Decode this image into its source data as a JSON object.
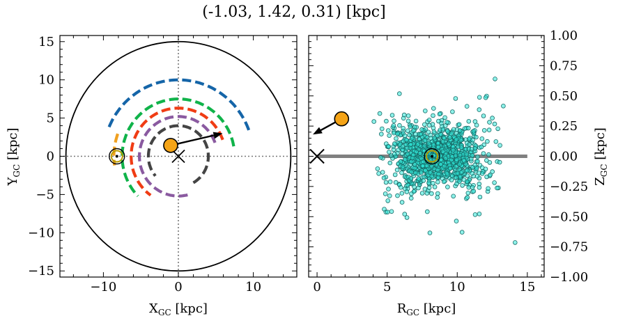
{
  "title": "(-1.03, 1.42, 0.31) [kpc]",
  "chart_data": [
    {
      "type": "scatter",
      "panel": "left",
      "xlabel_main": "X",
      "xlabel_sub": "GC",
      "xlabel_unit": " [kpc]",
      "ylabel_main": "Y",
      "ylabel_sub": "GC",
      "ylabel_unit": " [kpc]",
      "xlim": [
        -15.8,
        15.8
      ],
      "ylim": [
        -15.8,
        15.8
      ],
      "xticks": [
        -10,
        0,
        10
      ],
      "xtick_labels": [
        "−10",
        "0",
        "10"
      ],
      "yticks": [
        -15,
        -10,
        -5,
        0,
        5,
        10,
        15
      ],
      "ytick_labels": [
        "−15",
        "−10",
        "−5",
        "0",
        "5",
        "10",
        "15"
      ],
      "grid": false,
      "galaxy_circle_radius": 15,
      "galactic_center": [
        0,
        0
      ],
      "sun_position": [
        -8.2,
        0
      ],
      "object_position": [
        -1.03,
        1.42
      ],
      "velocity_arrow_end": [
        5.9,
        3.0
      ],
      "spiral_arms": [
        {
          "color": "#1565a8",
          "radius": 10.0,
          "theta_deg": [
            20,
            160
          ]
        },
        {
          "color": "#10b34a",
          "radius": 7.5,
          "theta_deg": [
            10,
            225
          ]
        },
        {
          "color": "#f0a020",
          "radius": 8.6,
          "theta_deg": [
            160,
            188
          ]
        },
        {
          "color": "#f03c14",
          "radius": 6.3,
          "theta_deg": [
            20,
            235
          ]
        },
        {
          "color": "#8a5aa0",
          "radius": 5.2,
          "theta_deg": [
            20,
            285
          ]
        },
        {
          "color": "#444444",
          "radius": 4.0,
          "theta_deg": [
            -60,
            220
          ]
        }
      ]
    },
    {
      "type": "scatter",
      "panel": "right",
      "xlabel_main": "R",
      "xlabel_sub": "GC",
      "xlabel_unit": " [kpc]",
      "ylabel_main": "Z",
      "ylabel_sub": "GC",
      "ylabel_unit": " [kpc]",
      "xlim": [
        -0.6,
        16.2
      ],
      "ylim": [
        -1.0,
        1.0
      ],
      "xticks": [
        0,
        5,
        10,
        15
      ],
      "xtick_labels": [
        "0",
        "5",
        "10",
        "15"
      ],
      "yticks": [
        -1.0,
        -0.75,
        -0.5,
        -0.25,
        0.0,
        0.25,
        0.5,
        0.75,
        1.0
      ],
      "ytick_labels": [
        "−1.00",
        "−0.75",
        "−0.50",
        "−0.25",
        "0.00",
        "0.25",
        "0.50",
        "0.75",
        "1.00"
      ],
      "grid": false,
      "disk_line": {
        "x": [
          0,
          15
        ],
        "y": 0.0,
        "color": "#808080"
      },
      "galactic_center": [
        0,
        0
      ],
      "sun_position": [
        8.2,
        0.0
      ],
      "object_position": [
        1.75,
        0.31
      ],
      "velocity_arrow_end": [
        -0.3,
        0.18
      ],
      "star_color": "#30e8d8",
      "star_distribution": {
        "count": 1400,
        "center_r": 8.5,
        "r_min": 4.0,
        "r_max": 15.5,
        "spread_z_at_center": 0.08,
        "flare": 0.6
      }
    }
  ],
  "colors": {
    "object_fill": "#f5a417",
    "sun_ring": "#b89a00",
    "scatter_edge": "#176a66"
  }
}
